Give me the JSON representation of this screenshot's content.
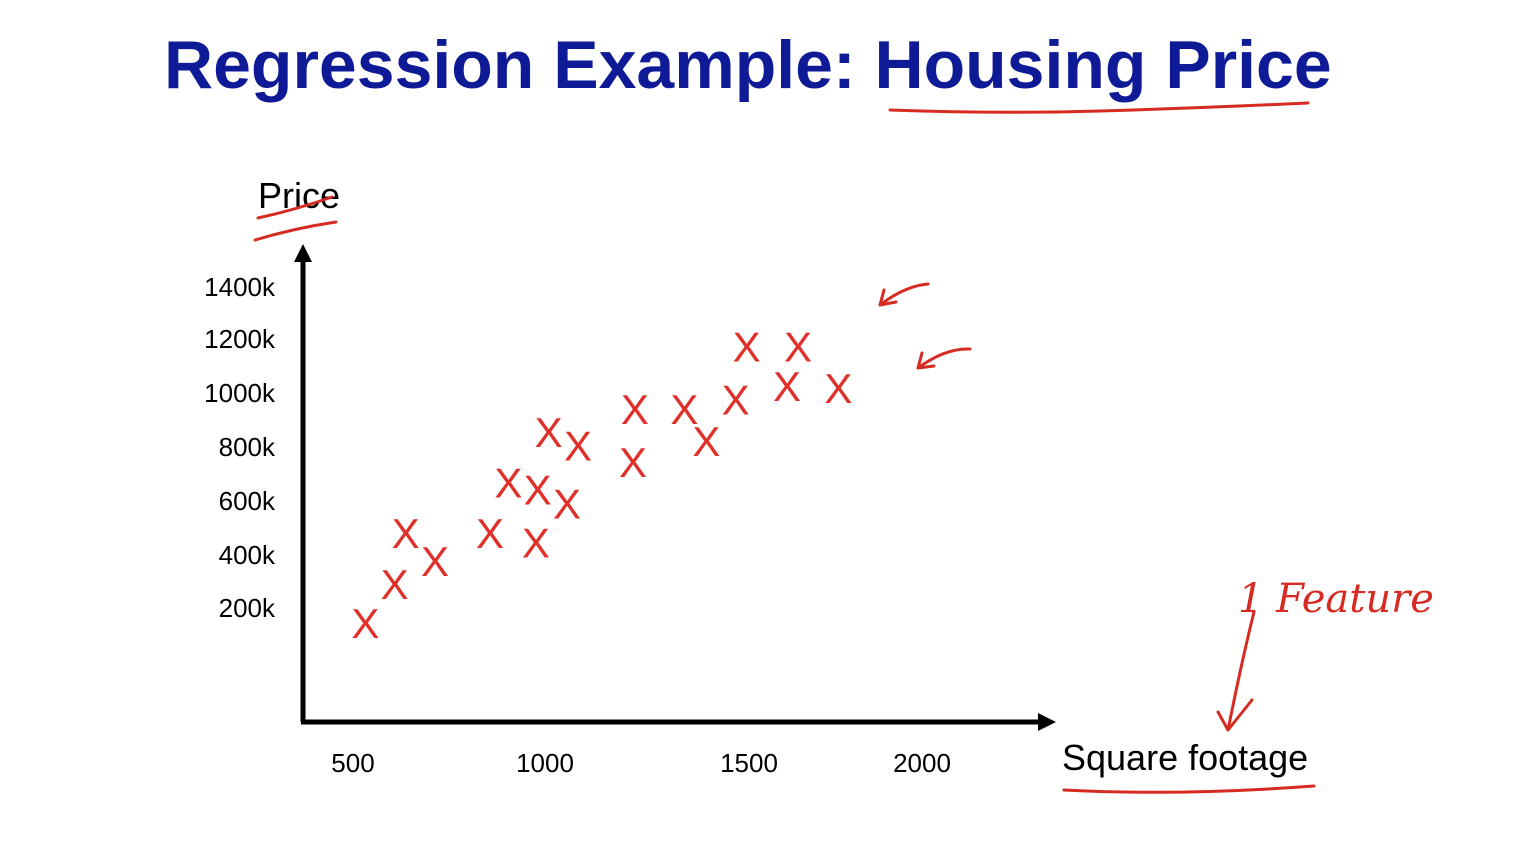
{
  "slide": {
    "title_part1": "Regression Example: ",
    "title_part2": "Housing Price",
    "annotation": "1 Feature",
    "ink_color": "#d62b22",
    "title_color": "#0e1a96"
  },
  "chart_data": {
    "type": "scatter",
    "title": "Regression Example: Housing Price",
    "xlabel": "Square footage",
    "ylabel": "Price",
    "x_ticks": [
      "500",
      "1000",
      "1500",
      "2000"
    ],
    "y_ticks": [
      "200k",
      "400k",
      "600k",
      "800k",
      "1000k",
      "1200k",
      "1400k"
    ],
    "xlim": [
      440,
      2450
    ],
    "ylim": [
      -400,
      1650
    ],
    "marker": "X",
    "marker_color": "#e0302a",
    "points": [
      {
        "x": 610,
        "y": 30
      },
      {
        "x": 690,
        "y": 200
      },
      {
        "x": 720,
        "y": 420
      },
      {
        "x": 800,
        "y": 300
      },
      {
        "x": 950,
        "y": 420
      },
      {
        "x": 1000,
        "y": 640
      },
      {
        "x": 1075,
        "y": 380
      },
      {
        "x": 1080,
        "y": 610
      },
      {
        "x": 1110,
        "y": 860
      },
      {
        "x": 1160,
        "y": 550
      },
      {
        "x": 1190,
        "y": 800
      },
      {
        "x": 1340,
        "y": 730
      },
      {
        "x": 1345,
        "y": 960
      },
      {
        "x": 1480,
        "y": 960
      },
      {
        "x": 1540,
        "y": 820
      },
      {
        "x": 1620,
        "y": 1000
      },
      {
        "x": 1650,
        "y": 1230
      },
      {
        "x": 1760,
        "y": 1060
      },
      {
        "x": 1790,
        "y": 1230
      },
      {
        "x": 1900,
        "y": 1050
      }
    ]
  }
}
